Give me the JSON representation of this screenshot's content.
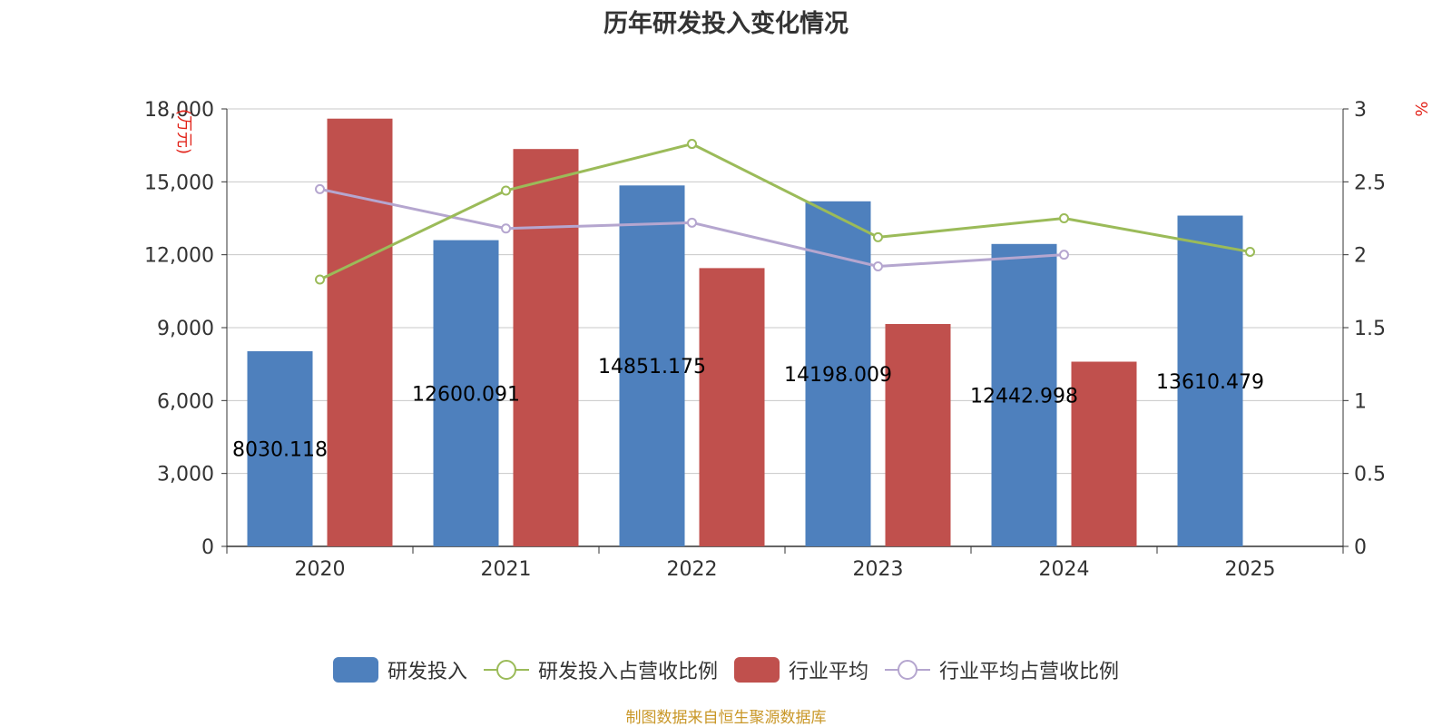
{
  "title": "历年研发投入变化情况",
  "source": "制图数据来自恒生聚源数据库",
  "colors": {
    "rd_bar": "#4e80bd",
    "industry_bar": "#c0504d",
    "rd_ratio_line": "#9bbb59",
    "industry_ratio_line": "#b5a6cf",
    "axis_unit": "#e2231a",
    "source": "#c99728"
  },
  "legend": {
    "items": [
      {
        "label": "研发投入",
        "kind": "bar",
        "color": "#4e80bd"
      },
      {
        "label": "研发投入占营收比例",
        "kind": "line",
        "color": "#9bbb59"
      },
      {
        "label": "行业平均",
        "kind": "bar",
        "color": "#c0504d"
      },
      {
        "label": "行业平均占营收比例",
        "kind": "line",
        "color": "#b5a6cf"
      }
    ]
  },
  "chart_data": {
    "type": "bar",
    "categories": [
      "2020",
      "2021",
      "2022",
      "2023",
      "2024",
      "2025"
    ],
    "y_left": {
      "unit": "万元",
      "min": 0,
      "max": 18000,
      "ticks": [
        0,
        3000,
        6000,
        9000,
        12000,
        15000,
        18000
      ],
      "tick_labels": [
        "0",
        "3,000",
        "6,000",
        "9,000",
        "12,000",
        "15,000",
        "18,000"
      ]
    },
    "y_right": {
      "unit": "%",
      "min": 0,
      "max": 3,
      "ticks": [
        0,
        0.5,
        1,
        1.5,
        2,
        2.5,
        3
      ],
      "tick_labels": [
        "0",
        "0.5",
        "1",
        "1.5",
        "2",
        "2.5",
        "3"
      ]
    },
    "grid": true,
    "legend_position": "bottom",
    "series": [
      {
        "name": "研发投入",
        "type": "bar",
        "axis": "left",
        "values": [
          8030.118,
          12600.091,
          14851.175,
          14198.009,
          12442.998,
          13610.479
        ],
        "data_labels": [
          "8030.118",
          "12600.091",
          "14851.175",
          "14198.009",
          "12442.998",
          "13610.479"
        ]
      },
      {
        "name": "行业平均",
        "type": "bar",
        "axis": "left",
        "values": [
          17600,
          16350,
          11450,
          9150,
          7600,
          null
        ]
      },
      {
        "name": "研发投入占营收比例",
        "type": "line",
        "axis": "right",
        "values": [
          1.83,
          2.44,
          2.76,
          2.12,
          2.25,
          2.02
        ]
      },
      {
        "name": "行业平均占营收比例",
        "type": "line",
        "axis": "right",
        "values": [
          2.45,
          2.18,
          2.22,
          1.92,
          2.0,
          null
        ]
      }
    ]
  }
}
